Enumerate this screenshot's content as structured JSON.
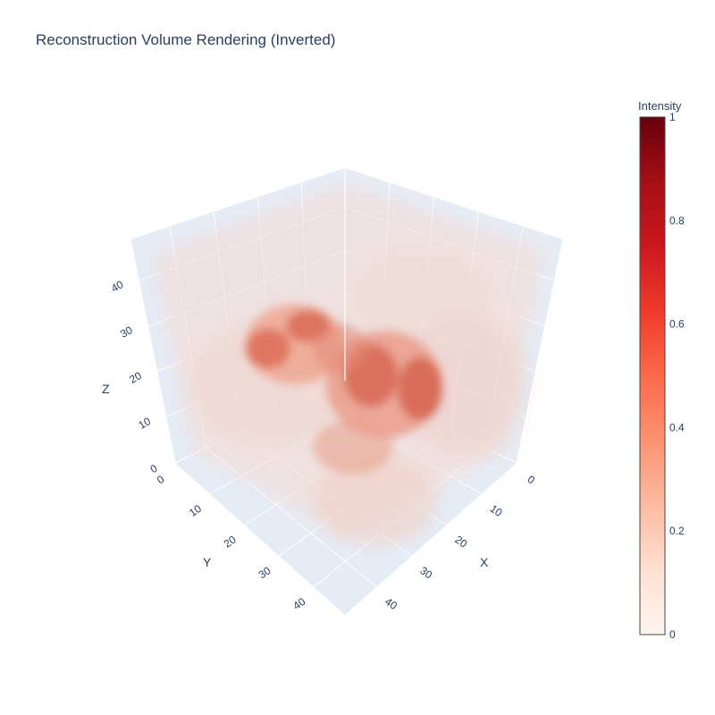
{
  "chart_data": {
    "type": "volume",
    "title": "Reconstruction Volume Rendering (Inverted)",
    "axes": {
      "x": {
        "label": "X",
        "ticks": [
          "0",
          "10",
          "20",
          "30",
          "40"
        ],
        "range": [
          0,
          49
        ]
      },
      "y": {
        "label": "Y",
        "ticks": [
          "0",
          "10",
          "20",
          "30",
          "40"
        ],
        "range": [
          0,
          49
        ]
      },
      "z": {
        "label": "Z",
        "ticks": [
          "0",
          "10",
          "20",
          "30",
          "40"
        ],
        "range": [
          0,
          49
        ]
      }
    },
    "colorbar": {
      "title": "Intensity",
      "ticks": [
        "0",
        "0.2",
        "0.4",
        "0.6",
        "0.8",
        "1"
      ],
      "range": [
        0,
        1
      ],
      "colorscale": "Reds",
      "stops": [
        "#fff5f0",
        "#fee0d2",
        "#fcbba1",
        "#fc9272",
        "#fb6a4a",
        "#ef3b2c",
        "#cb181d",
        "#a50f15",
        "#67000d"
      ]
    },
    "grid": true,
    "scene_background": "#e5ecf6"
  }
}
